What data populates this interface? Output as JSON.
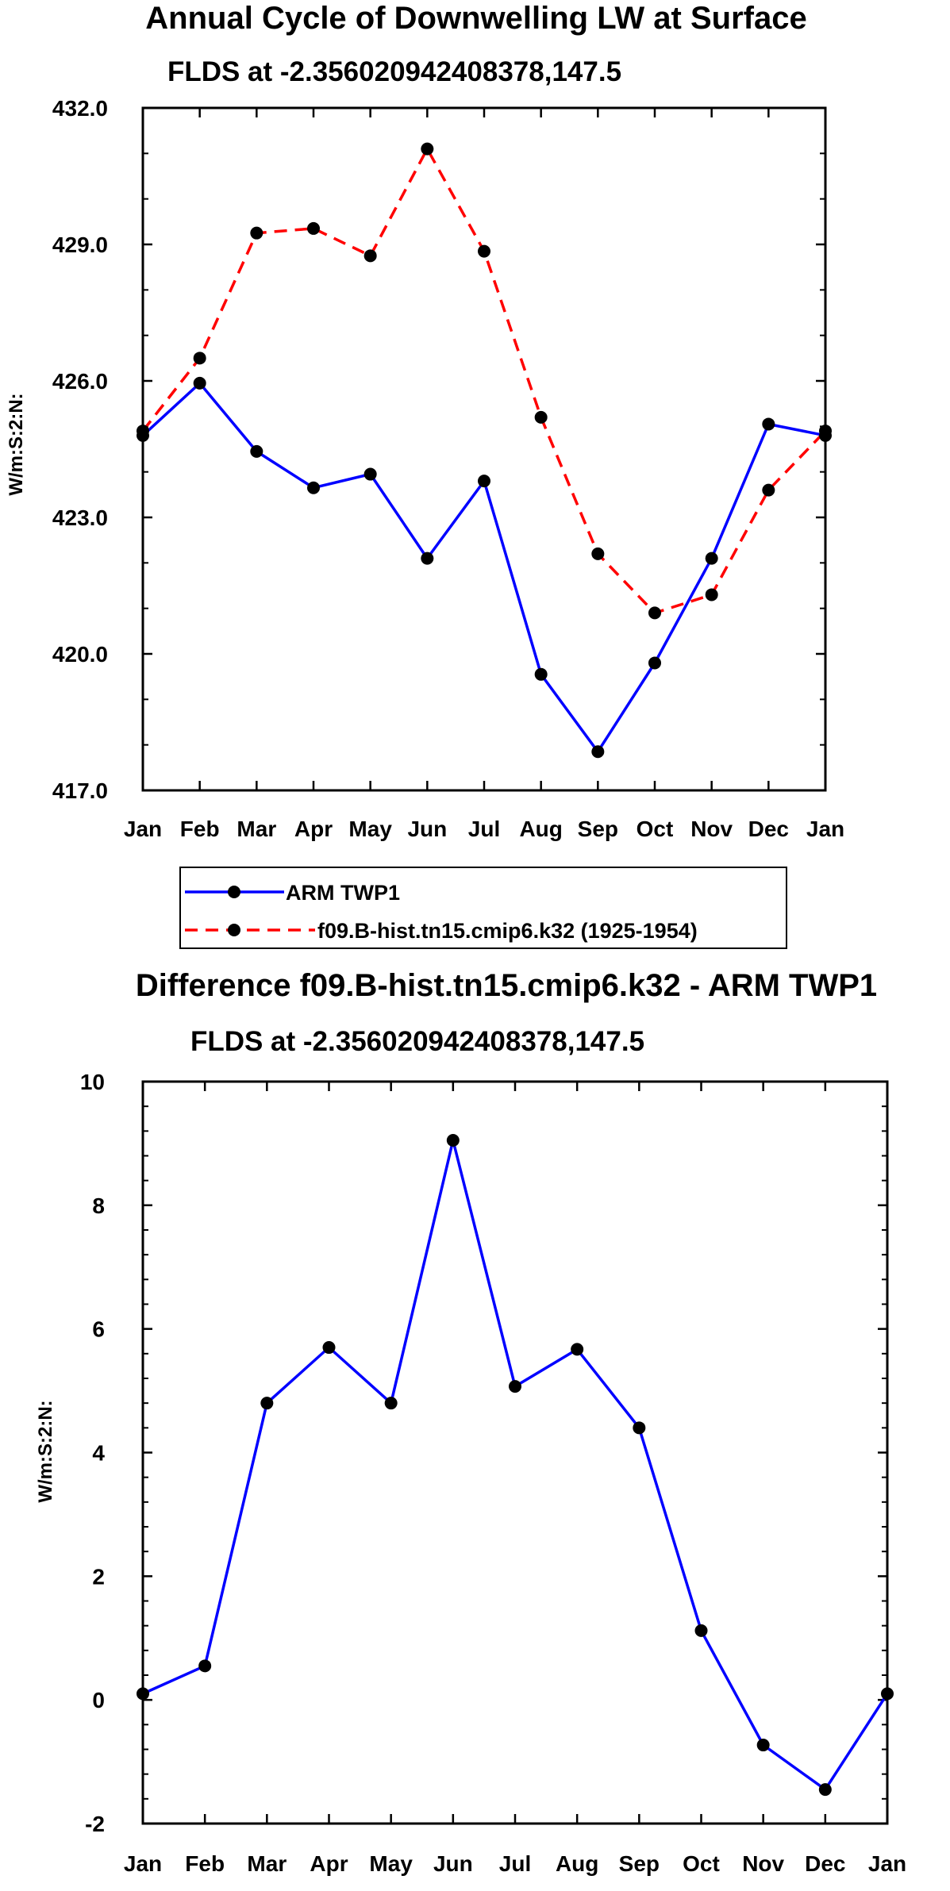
{
  "chart_data": [
    {
      "type": "line",
      "title": "Annual Cycle of Downwelling LW at Surface",
      "subtitle": "FLDS at -2.356020942408378,147.5",
      "ylabel": "W/m:S:2:N:",
      "xlabel": "",
      "categories": [
        "Jan",
        "Feb",
        "Mar",
        "Apr",
        "May",
        "Jun",
        "Jul",
        "Aug",
        "Sep",
        "Oct",
        "Nov",
        "Dec",
        "Jan"
      ],
      "ylim": [
        417.0,
        432.0
      ],
      "yticks": [
        "417.0",
        "420.0",
        "423.0",
        "426.0",
        "429.0",
        "432.0"
      ],
      "series": [
        {
          "name": "ARM TWP1",
          "color": "#0000ff",
          "dash": "solid",
          "values": [
            424.8,
            425.95,
            424.45,
            423.65,
            423.95,
            422.1,
            423.8,
            419.55,
            417.85,
            419.8,
            422.1,
            425.05,
            424.8
          ]
        },
        {
          "name": "f09.B-hist.tn15.cmip6.k32 (1925-1954)",
          "color": "#ff0000",
          "dash": "dashed",
          "values": [
            424.9,
            426.5,
            429.25,
            429.35,
            428.75,
            431.1,
            428.85,
            425.2,
            422.2,
            420.9,
            421.3,
            423.6,
            424.9
          ]
        }
      ],
      "legend": "below"
    },
    {
      "type": "line",
      "title": "Difference f09.B-hist.tn15.cmip6.k32 - ARM TWP1",
      "subtitle": "FLDS at -2.356020942408378,147.5",
      "ylabel": "W/m:S:2:N:",
      "xlabel": "",
      "categories": [
        "Jan",
        "Feb",
        "Mar",
        "Apr",
        "May",
        "Jun",
        "Jul",
        "Aug",
        "Sep",
        "Oct",
        "Nov",
        "Dec",
        "Jan"
      ],
      "ylim": [
        -2,
        10
      ],
      "yticks": [
        "-2",
        "0",
        "2",
        "4",
        "6",
        "8",
        "10"
      ],
      "series": [
        {
          "name": "Difference",
          "color": "#0000ff",
          "dash": "solid",
          "values": [
            0.1,
            0.55,
            4.8,
            5.7,
            4.8,
            9.05,
            5.07,
            5.67,
            4.4,
            1.12,
            -0.73,
            -1.45,
            0.1
          ]
        }
      ]
    }
  ]
}
